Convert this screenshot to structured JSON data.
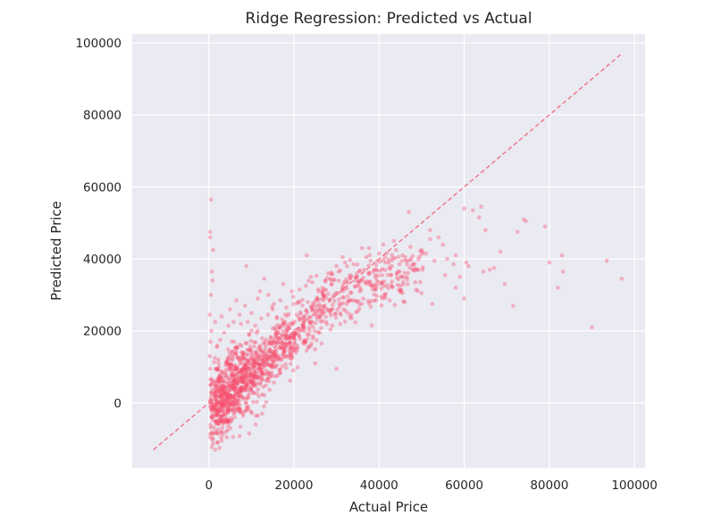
{
  "chart_data": {
    "type": "scatter",
    "title": "Ridge Regression: Predicted vs Actual",
    "xlabel": "Actual Price",
    "ylabel": "Predicted Price",
    "xlim": [
      -18000,
      102500
    ],
    "ylim": [
      -18000,
      102500
    ],
    "x_ticks": [
      0,
      20000,
      40000,
      60000,
      80000,
      100000
    ],
    "y_ticks": [
      0,
      20000,
      40000,
      60000,
      80000,
      100000
    ],
    "x_tick_labels": [
      "0",
      "20000",
      "40000",
      "60000",
      "80000",
      "100000"
    ],
    "y_tick_labels": [
      "0",
      "20000",
      "40000",
      "60000",
      "80000",
      "100000"
    ],
    "grid": true,
    "background": "#eaeaf2",
    "point_color": "#f7506e",
    "reference_line": {
      "style": "dashed",
      "color": "#f07288",
      "from": [
        -13000,
        -13000
      ],
      "to": [
        97000,
        97000
      ]
    },
    "point_count_estimate": 1500,
    "series": [
      {
        "points": [
          [
            500,
            56500
          ],
          [
            300,
            47500
          ],
          [
            300,
            46000
          ],
          [
            700,
            36500
          ],
          [
            500,
            30000
          ],
          [
            200,
            24500
          ],
          [
            1000,
            42500
          ],
          [
            900,
            34000
          ],
          [
            8800,
            38000
          ],
          [
            13000,
            34500
          ],
          [
            23000,
            41000
          ],
          [
            30000,
            38000
          ],
          [
            36000,
            43000
          ],
          [
            37000,
            40500
          ],
          [
            47000,
            53000
          ],
          [
            54000,
            46000
          ],
          [
            52000,
            48000
          ],
          [
            55000,
            44000
          ],
          [
            56000,
            40000
          ],
          [
            51000,
            41500
          ],
          [
            60000,
            54000
          ],
          [
            62000,
            53500
          ],
          [
            64000,
            54500
          ],
          [
            63500,
            51500
          ],
          [
            61000,
            38000
          ],
          [
            60500,
            39000
          ],
          [
            58000,
            41000
          ],
          [
            57500,
            38500
          ],
          [
            59000,
            35000
          ],
          [
            55500,
            35500
          ],
          [
            65000,
            48000
          ],
          [
            66000,
            37000
          ],
          [
            64500,
            36500
          ],
          [
            67000,
            37500
          ],
          [
            68500,
            42000
          ],
          [
            69500,
            33000
          ],
          [
            71500,
            27000
          ],
          [
            72500,
            47500
          ],
          [
            74000,
            51000
          ],
          [
            74500,
            50500
          ],
          [
            79000,
            49000
          ],
          [
            80000,
            39000
          ],
          [
            82000,
            32000
          ],
          [
            83000,
            41000
          ],
          [
            83200,
            36500
          ],
          [
            90000,
            21000
          ],
          [
            93500,
            39500
          ],
          [
            97000,
            34500
          ],
          [
            60000,
            29000
          ],
          [
            58000,
            32000
          ],
          [
            49000,
            37000
          ],
          [
            48500,
            33500
          ],
          [
            50000,
            30500
          ],
          [
            52500,
            27500
          ],
          [
            46000,
            28000
          ],
          [
            45000,
            31000
          ],
          [
            30000,
            9500
          ],
          [
            20500,
            14000
          ],
          [
            23000,
            14500
          ],
          [
            26500,
            16500
          ],
          [
            25000,
            11000
          ],
          [
            13000,
            -1000
          ],
          [
            12500,
            -3000
          ],
          [
            11000,
            -6000
          ],
          [
            9500,
            -8500
          ],
          [
            11500,
            -3500
          ],
          [
            4000,
            -8000
          ],
          [
            3000,
            -10500
          ],
          [
            2500,
            -12500
          ],
          [
            1500,
            -13000
          ],
          [
            2000,
            -11000
          ],
          [
            4200,
            -9500
          ],
          [
            5100,
            -7000
          ],
          [
            2800,
            -5000
          ],
          [
            3500,
            -3000
          ],
          [
            1200,
            -6800
          ],
          [
            800,
            -4000
          ],
          [
            1000,
            -1500
          ],
          [
            500,
            3000
          ],
          [
            400,
            6500
          ],
          [
            300,
            9500
          ],
          [
            200,
            13000
          ],
          [
            400,
            17000
          ],
          [
            600,
            20000
          ],
          [
            1500,
            22500
          ],
          [
            3000,
            24000
          ],
          [
            5000,
            26000
          ],
          [
            6500,
            28500
          ],
          [
            8500,
            27000
          ],
          [
            10000,
            25000
          ],
          [
            12000,
            31000
          ],
          [
            14000,
            30000
          ],
          [
            11500,
            29000
          ],
          [
            16000,
            23500
          ],
          [
            17500,
            33000
          ],
          [
            19500,
            31000
          ],
          [
            15000,
            26000
          ],
          [
            21000,
            28000
          ],
          [
            24000,
            35000
          ],
          [
            28000,
            36000
          ],
          [
            30500,
            36500
          ],
          [
            32000,
            39000
          ],
          [
            34000,
            38500
          ],
          [
            36500,
            37000
          ],
          [
            38000,
            39500
          ],
          [
            40000,
            41500
          ],
          [
            41500,
            39000
          ],
          [
            43000,
            38000
          ],
          [
            44500,
            36500
          ],
          [
            42000,
            35500
          ],
          [
            39500,
            34000
          ],
          [
            45500,
            41000
          ],
          [
            47500,
            40000
          ],
          [
            46500,
            35000
          ],
          [
            48000,
            38500
          ],
          [
            50000,
            42500
          ],
          [
            52000,
            45500
          ],
          [
            53000,
            39500
          ],
          [
            43500,
            45000
          ],
          [
            41000,
            44000
          ],
          [
            44000,
            42500
          ],
          [
            38500,
            31500
          ],
          [
            40500,
            29500
          ],
          [
            42500,
            28500
          ],
          [
            36000,
            27500
          ],
          [
            35000,
            25500
          ],
          [
            33500,
            23500
          ],
          [
            31000,
            24500
          ],
          [
            29000,
            21500
          ],
          [
            27500,
            22500
          ],
          [
            26000,
            19500
          ],
          [
            24500,
            18500
          ],
          [
            22500,
            17000
          ],
          [
            20000,
            18000
          ],
          [
            18000,
            15500
          ],
          [
            16500,
            12500
          ],
          [
            15000,
            10500
          ],
          [
            13500,
            9000
          ],
          [
            12000,
            7500
          ],
          [
            10500,
            5000
          ],
          [
            9000,
            3500
          ],
          [
            7500,
            2000
          ],
          [
            6000,
            500
          ],
          [
            5000,
            1500
          ],
          [
            4000,
            2500
          ],
          [
            3200,
            4500
          ],
          [
            2400,
            7000
          ],
          [
            1800,
            9500
          ],
          [
            1400,
            12500
          ],
          [
            1900,
            15500
          ],
          [
            2700,
            17500
          ],
          [
            3600,
            19500
          ],
          [
            4600,
            21500
          ],
          [
            5800,
            22500
          ],
          [
            7200,
            24500
          ],
          [
            9100,
            22500
          ],
          [
            10900,
            21500
          ],
          [
            12300,
            23500
          ],
          [
            13900,
            24500
          ],
          [
            15300,
            27500
          ],
          [
            16800,
            28500
          ],
          [
            18200,
            26500
          ],
          [
            19800,
            29500
          ],
          [
            21300,
            31500
          ],
          [
            22800,
            32500
          ],
          [
            24300,
            33500
          ],
          [
            25800,
            31000
          ],
          [
            27300,
            34000
          ],
          [
            28800,
            33000
          ],
          [
            30300,
            30500
          ],
          [
            31800,
            33500
          ],
          [
            33300,
            34500
          ],
          [
            34800,
            36000
          ],
          [
            36300,
            34800
          ],
          [
            37800,
            36200
          ],
          [
            39300,
            38200
          ],
          [
            40800,
            37200
          ],
          [
            42300,
            39800
          ],
          [
            43800,
            40200
          ]
        ]
      }
    ]
  }
}
